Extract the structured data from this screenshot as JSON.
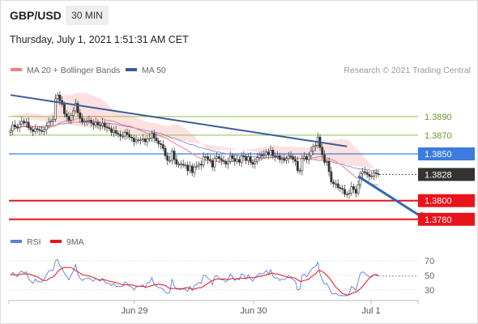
{
  "header": {
    "symbol": "GBP/USD",
    "timeframe": "30 MIN",
    "datetime": "Thursday, July 1, 2021 1:51:31 AM CET"
  },
  "legend": {
    "ma20_label": "MA 20 + Bollinger Bands",
    "ma50_label": "MA 50",
    "copyright": "Research © 2021 Trading Central",
    "rsi_label": "RSI",
    "ma9_label": "9MA"
  },
  "colors": {
    "ma20": "#f08080",
    "bollinger_fill": "#fde1e1",
    "ma50": "#6f78c4",
    "trendline": "#3d5a99",
    "green_level": "#8bc34a",
    "blue_level": "#3d7be0",
    "red_level": "#e8141b",
    "current_price": "#333333",
    "arrow": "#2f6db5",
    "candle": "#333333",
    "rsi": "#5b7fe0",
    "rsi_ma": "#e8141b"
  },
  "chart_data": [
    {
      "type": "candlestick",
      "title": "GBP/USD 30 MIN",
      "x_ticks": [
        "Jun 29",
        "Jun 30",
        "Jul 1"
      ],
      "price_levels": [
        {
          "value": 1.389,
          "label": "1.3890",
          "kind": "resistance-green"
        },
        {
          "value": 1.387,
          "label": "1.3870",
          "kind": "resistance-green"
        },
        {
          "value": 1.385,
          "label": "1.3850",
          "kind": "pivot-blue"
        },
        {
          "value": 1.3828,
          "label": "1.3828",
          "kind": "current-price"
        },
        {
          "value": 1.38,
          "label": "1.3800",
          "kind": "support-red"
        },
        {
          "value": 1.378,
          "label": "1.3780",
          "kind": "support-red"
        }
      ],
      "ylim": [
        1.3772,
        1.3928
      ],
      "close": [
        1.3875,
        1.3881,
        1.3879,
        1.3878,
        1.3882,
        1.3885,
        1.3883,
        1.3884,
        1.3878,
        1.3876,
        1.3874,
        1.3877,
        1.3876,
        1.3875,
        1.3874,
        1.3876,
        1.388,
        1.3884,
        1.3885,
        1.3887,
        1.3909,
        1.3913,
        1.3907,
        1.3903,
        1.3893,
        1.389,
        1.3886,
        1.3891,
        1.3896,
        1.3904,
        1.3894,
        1.3888,
        1.3884,
        1.3885,
        1.3885,
        1.3886,
        1.3883,
        1.3881,
        1.3884,
        1.3881,
        1.388,
        1.3883,
        1.3879,
        1.3878,
        1.3877,
        1.3873,
        1.3875,
        1.3872,
        1.3871,
        1.3869,
        1.3869,
        1.3873,
        1.3871,
        1.3868,
        1.3867,
        1.3863,
        1.3865,
        1.3865,
        1.3865,
        1.3866,
        1.3863,
        1.3866,
        1.3867,
        1.3872,
        1.3867,
        1.3864,
        1.3861,
        1.386,
        1.3856,
        1.3848,
        1.3843,
        1.3843,
        1.3853,
        1.3844,
        1.3839,
        1.3839,
        1.3839,
        1.3838,
        1.3838,
        1.3832,
        1.3837,
        1.383,
        1.3836,
        1.3837,
        1.3839,
        1.3838,
        1.3847,
        1.3847,
        1.3844,
        1.3843,
        1.3836,
        1.3845,
        1.3847,
        1.3845,
        1.3843,
        1.3842,
        1.3839,
        1.3842,
        1.3848,
        1.3845,
        1.3842,
        1.3844,
        1.3841,
        1.3848,
        1.3847,
        1.3843,
        1.3847,
        1.3841,
        1.3839,
        1.3842,
        1.3846,
        1.3849,
        1.3848,
        1.3849,
        1.3852,
        1.3849,
        1.3854,
        1.3848,
        1.3847,
        1.3848,
        1.3844,
        1.3845,
        1.3843,
        1.3845,
        1.3848,
        1.3847,
        1.3844,
        1.3842,
        1.3832,
        1.3832,
        1.3845,
        1.3847,
        1.3844,
        1.3848,
        1.3853,
        1.3858,
        1.3859,
        1.3868,
        1.3857,
        1.3849,
        1.3841,
        1.3842,
        1.3831,
        1.382,
        1.3818,
        1.3818,
        1.3814,
        1.3813,
        1.3812,
        1.3807,
        1.3807,
        1.3808,
        1.3815,
        1.3812,
        1.3808,
        1.3817,
        1.3829,
        1.3831,
        1.383,
        1.3828,
        1.3826,
        1.3826,
        1.383,
        1.3829,
        1.3828
      ],
      "ma20": [
        1.3875,
        1.3876,
        1.3877,
        1.3877,
        1.3878,
        1.3879,
        1.3879,
        1.388,
        1.388,
        1.3879,
        1.3879,
        1.3879,
        1.3879,
        1.3879,
        1.3878,
        1.3878,
        1.3878,
        1.3878,
        1.3879,
        1.3879,
        1.388,
        1.3882,
        1.3883,
        1.3884,
        1.3885,
        1.3885,
        1.3885,
        1.3885,
        1.3886,
        1.3887,
        1.3888,
        1.3889,
        1.3889,
        1.389,
        1.389,
        1.389,
        1.389,
        1.389,
        1.389,
        1.389,
        1.389,
        1.3888,
        1.3887,
        1.3886,
        1.3886,
        1.3885,
        1.3885,
        1.3884,
        1.3883,
        1.3882,
        1.3881,
        1.3881,
        1.388,
        1.388,
        1.3879,
        1.3878,
        1.3877,
        1.3876,
        1.3875,
        1.3874,
        1.3873,
        1.3872,
        1.3872,
        1.3871,
        1.3871,
        1.3871,
        1.387,
        1.3869,
        1.3868,
        1.3867,
        1.3866,
        1.3864,
        1.3863,
        1.3862,
        1.386,
        1.3859,
        1.3858,
        1.3856,
        1.3855,
        1.3853,
        1.3852,
        1.385,
        1.3849,
        1.3847,
        1.3846,
        1.3845,
        1.3844,
        1.3843,
        1.3843,
        1.3842,
        1.3842,
        1.3842,
        1.3842,
        1.3841,
        1.3842,
        1.3842,
        1.3842,
        1.3842,
        1.3842,
        1.3842,
        1.3843,
        1.3843,
        1.3843,
        1.3843,
        1.3843,
        1.3843,
        1.3843,
        1.3843,
        1.3843,
        1.3844,
        1.3844,
        1.3845,
        1.3845,
        1.3845,
        1.3846,
        1.3846,
        1.3846,
        1.3847,
        1.3847,
        1.3847,
        1.3846,
        1.3846,
        1.3846,
        1.3846,
        1.3846,
        1.3846,
        1.3846,
        1.3846,
        1.3845,
        1.3845,
        1.3845,
        1.3845,
        1.3845,
        1.3845,
        1.3845,
        1.3846,
        1.3846,
        1.3847,
        1.3847,
        1.3847,
        1.3846,
        1.3846,
        1.3845,
        1.3844,
        1.3843,
        1.3842,
        1.384,
        1.3839,
        1.3837,
        1.3835,
        1.3833,
        1.3831,
        1.3829,
        1.3827,
        1.3825,
        1.3824,
        1.3824,
        1.3823,
        1.3822,
        1.3821,
        1.3819,
        1.3818,
        1.3817,
        1.3817,
        1.3817
      ],
      "bollinger_width": [
        0.0015,
        0.0015,
        0.0015,
        0.0015,
        0.0014,
        0.0014,
        0.0014,
        0.0014,
        0.0014,
        0.0014,
        0.0014,
        0.0014,
        0.0014,
        0.0014,
        0.0013,
        0.0013,
        0.0013,
        0.0013,
        0.0014,
        0.0016,
        0.002,
        0.0024,
        0.0027,
        0.0027,
        0.0028,
        0.0028,
        0.0028,
        0.0028,
        0.0028,
        0.0028,
        0.0027,
        0.0026,
        0.0026,
        0.0025,
        0.0025,
        0.0024,
        0.0023,
        0.0022,
        0.0021,
        0.002,
        0.002,
        0.0019,
        0.0019,
        0.0017,
        0.0016,
        0.0014,
        0.0012,
        0.0012,
        0.0012,
        0.0012,
        0.0012,
        0.0012,
        0.0012,
        0.0012,
        0.0012,
        0.0012,
        0.0012,
        0.0012,
        0.0012,
        0.0012,
        0.0012,
        0.0012,
        0.0012,
        0.0012,
        0.0012,
        0.0012,
        0.0012,
        0.0012,
        0.0012,
        0.0013,
        0.0014,
        0.0016,
        0.0018,
        0.002,
        0.0021,
        0.0022,
        0.0022,
        0.0022,
        0.0022,
        0.0022,
        0.0021,
        0.0021,
        0.002,
        0.0019,
        0.0018,
        0.0016,
        0.0015,
        0.0013,
        0.0012,
        0.0012,
        0.0012,
        0.0012,
        0.0012,
        0.0012,
        0.0012,
        0.0012,
        0.0012,
        0.0012,
        0.0012,
        0.0012,
        0.0012,
        0.0012,
        0.0012,
        0.0012,
        0.0012,
        0.0012,
        0.0012,
        0.0012,
        0.0012,
        0.0012,
        0.0012,
        0.0012,
        0.0012,
        0.0012,
        0.0012,
        0.0012,
        0.0012,
        0.0012,
        0.0012,
        0.0012,
        0.0012,
        0.0012,
        0.0012,
        0.0012,
        0.0012,
        0.0012,
        0.0012,
        0.0012,
        0.0012,
        0.0012,
        0.0012,
        0.0012,
        0.0012,
        0.0012,
        0.0012,
        0.0012,
        0.0012,
        0.0013,
        0.0014,
        0.0014,
        0.0014,
        0.0015,
        0.0018,
        0.002,
        0.0021,
        0.0023,
        0.0025,
        0.0027,
        0.0029,
        0.0031,
        0.0032,
        0.0033,
        0.0033,
        0.0032,
        0.0031,
        0.003,
        0.0028,
        0.0026,
        0.0024,
        0.0022,
        0.0021,
        0.002,
        0.0018,
        0.0017
      ],
      "ma50": [
        1.3879,
        1.3879,
        1.3879,
        1.3879,
        1.3879,
        1.3879,
        1.3879,
        1.3879,
        1.3879,
        1.3879,
        1.3879,
        1.3879,
        1.3879,
        1.3879,
        1.3879,
        1.388,
        1.388,
        1.388,
        1.388,
        1.3881,
        1.3881,
        1.3881,
        1.3882,
        1.3882,
        1.3882,
        1.3883,
        1.3883,
        1.3883,
        1.3884,
        1.3884,
        1.3884,
        1.3884,
        1.3884,
        1.3884,
        1.3884,
        1.3884,
        1.3884,
        1.3884,
        1.3884,
        1.3884,
        1.3883,
        1.3883,
        1.3883,
        1.3883,
        1.3883,
        1.3882,
        1.3882,
        1.3882,
        1.3881,
        1.3881,
        1.388,
        1.388,
        1.3879,
        1.3879,
        1.3878,
        1.3878,
        1.3877,
        1.3877,
        1.3876,
        1.3876,
        1.3875,
        1.3875,
        1.3874,
        1.3874,
        1.3873,
        1.3873,
        1.3872,
        1.3872,
        1.3871,
        1.387,
        1.3869,
        1.3868,
        1.3867,
        1.3867,
        1.3866,
        1.3865,
        1.3864,
        1.3863,
        1.3862,
        1.3861,
        1.386,
        1.386,
        1.3859,
        1.3858,
        1.3857,
        1.3857,
        1.3856,
        1.3855,
        1.3855,
        1.3854,
        1.3853,
        1.3853,
        1.3852,
        1.3852,
        1.3851,
        1.3851,
        1.385,
        1.385,
        1.385,
        1.3849,
        1.3849,
        1.3849,
        1.3848,
        1.3848,
        1.3848,
        1.3848,
        1.3847,
        1.3847,
        1.3847,
        1.3847,
        1.3847,
        1.3846,
        1.3846,
        1.3846,
        1.3846,
        1.3846,
        1.3846,
        1.3846,
        1.3846,
        1.3846,
        1.3845,
        1.3845,
        1.3845,
        1.3845,
        1.3845,
        1.3845,
        1.3845,
        1.3845,
        1.3845,
        1.3845,
        1.3844,
        1.3844,
        1.3844,
        1.3844,
        1.3844,
        1.3844,
        1.3844,
        1.3843,
        1.3843,
        1.3843,
        1.3843,
        1.3842,
        1.3842,
        1.3842,
        1.3841,
        1.384,
        1.384,
        1.3839,
        1.3839,
        1.3838,
        1.3837,
        1.3837,
        1.3836,
        1.3835,
        1.3835,
        1.3834,
        1.3834,
        1.3834,
        1.3833,
        1.3833,
        1.3833,
        1.3832,
        1.3832,
        1.3832,
        1.3832
      ],
      "trendline": {
        "from": [
          0,
          1.3913
        ],
        "to": [
          150,
          1.3858
        ]
      },
      "forecast_arrow": {
        "from": [
          155,
          1.3826
        ],
        "to": [
          185,
          1.378
        ]
      }
    },
    {
      "type": "line",
      "title": "RSI",
      "y_ticks": [
        70,
        50,
        30
      ],
      "ylim": [
        22,
        78
      ],
      "series": [
        {
          "name": "RSI",
          "values": [
            51,
            54,
            51,
            48,
            54,
            56,
            53,
            55,
            46,
            42,
            39,
            45,
            42,
            41,
            41,
            45,
            51,
            56,
            57,
            57,
            70,
            72,
            63,
            60,
            53,
            49,
            44,
            50,
            56,
            65,
            52,
            46,
            43,
            45,
            46,
            46,
            44,
            42,
            46,
            44,
            42,
            46,
            41,
            39,
            39,
            36,
            39,
            35,
            35,
            35,
            35,
            41,
            39,
            35,
            34,
            30,
            34,
            35,
            35,
            37,
            33,
            40,
            40,
            47,
            38,
            35,
            33,
            33,
            31,
            27,
            25,
            26,
            45,
            35,
            31,
            32,
            32,
            31,
            31,
            28,
            35,
            29,
            36,
            38,
            40,
            39,
            50,
            50,
            46,
            44,
            37,
            48,
            50,
            46,
            44,
            44,
            41,
            45,
            52,
            48,
            43,
            46,
            44,
            52,
            51,
            45,
            51,
            45,
            42,
            47,
            50,
            53,
            52,
            53,
            57,
            52,
            58,
            49,
            46,
            47,
            43,
            45,
            44,
            46,
            50,
            48,
            44,
            42,
            30,
            31,
            50,
            52,
            48,
            53,
            58,
            61,
            62,
            68,
            52,
            44,
            38,
            39,
            33,
            26,
            24,
            25,
            23,
            22,
            22,
            22,
            22,
            25,
            35,
            33,
            29,
            42,
            53,
            55,
            53,
            50,
            48,
            48,
            51,
            50,
            49
          ]
        },
        {
          "name": "9MA",
          "values": [
            51,
            51,
            51,
            51,
            51,
            52,
            52,
            52,
            52,
            51,
            50,
            49,
            48,
            46,
            44,
            43,
            43,
            45,
            47,
            48,
            51,
            55,
            58,
            60,
            61,
            61,
            61,
            61,
            59,
            57,
            55,
            53,
            51,
            50,
            50,
            49,
            48,
            47,
            46,
            44,
            44,
            44,
            44,
            43,
            42,
            41,
            41,
            40,
            39,
            38,
            37,
            37,
            37,
            37,
            37,
            36,
            35,
            35,
            35,
            35,
            34,
            34,
            35,
            36,
            37,
            37,
            38,
            37,
            37,
            36,
            34,
            32,
            32,
            32,
            32,
            31,
            31,
            32,
            33,
            33,
            32,
            31,
            31,
            32,
            33,
            33,
            35,
            37,
            39,
            41,
            43,
            44,
            45,
            45,
            45,
            45,
            45,
            44,
            45,
            46,
            45,
            45,
            46,
            46,
            46,
            46,
            47,
            47,
            47,
            47,
            48,
            49,
            49,
            50,
            51,
            51,
            53,
            53,
            52,
            52,
            51,
            50,
            49,
            48,
            47,
            47,
            47,
            46,
            44,
            42,
            42,
            43,
            44,
            45,
            48,
            50,
            52,
            56,
            57,
            55,
            53,
            50,
            47,
            43,
            38,
            34,
            31,
            28,
            25,
            24,
            23,
            23,
            25,
            26,
            27,
            29,
            32,
            35,
            39,
            43,
            46,
            49,
            51,
            51,
            50
          ]
        }
      ]
    }
  ]
}
